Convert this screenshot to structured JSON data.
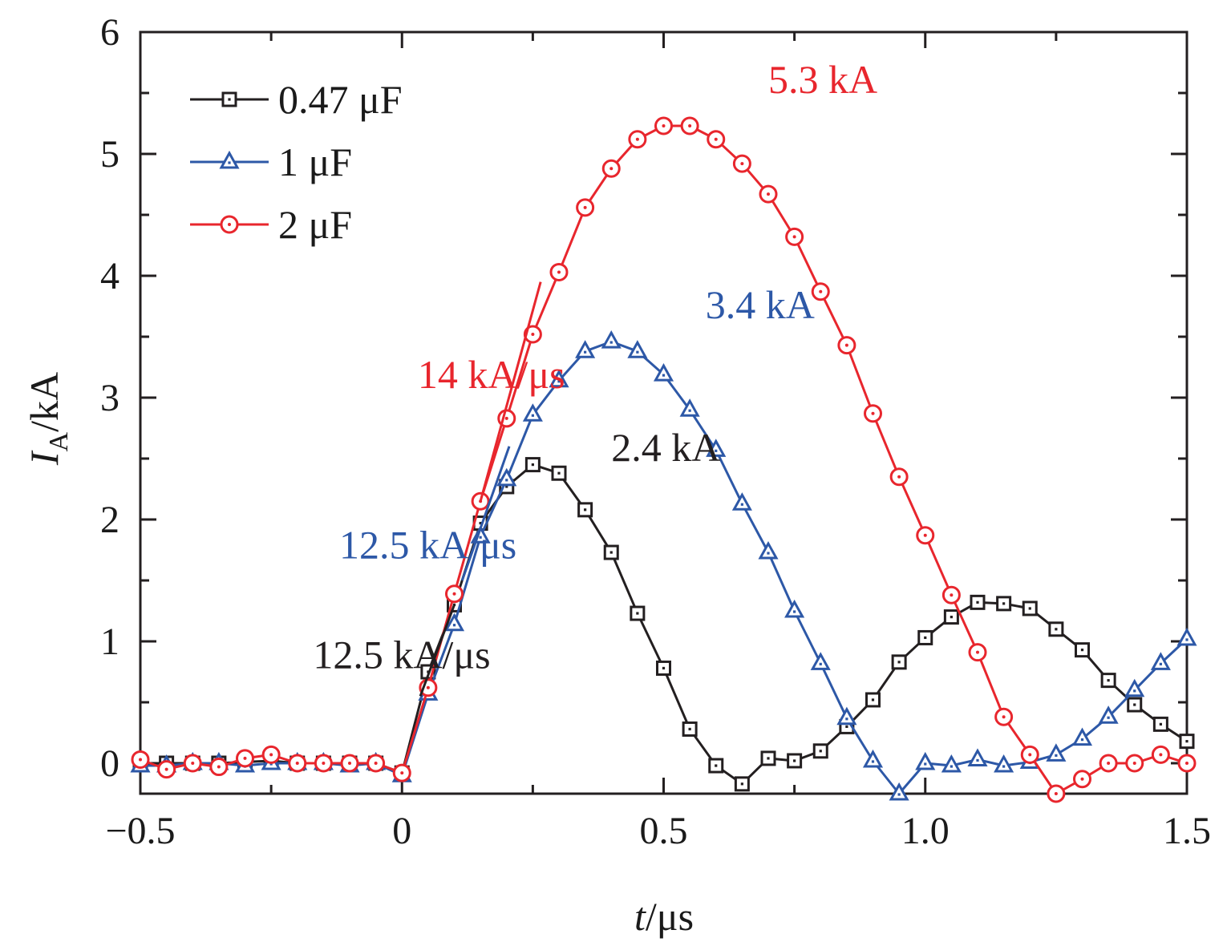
{
  "chart_data": {
    "type": "line",
    "xlabel_italic": "t",
    "xlabel_unit": "/μs",
    "ylabel_italic": "I",
    "ylabel_sub": "A",
    "ylabel_unit": "/kA",
    "xlim": [
      -0.5,
      1.5
    ],
    "ylim": [
      -0.25,
      6
    ],
    "x_ticks": [
      -0.5,
      0,
      0.5,
      1.0,
      1.5
    ],
    "x_tick_labels": [
      "−0.5",
      "0",
      "0.5",
      "1.0",
      "1.5"
    ],
    "y_ticks": [
      0,
      1,
      2,
      3,
      4,
      5,
      6
    ],
    "y_tick_labels": [
      "0",
      "1",
      "2",
      "3",
      "4",
      "5",
      "6"
    ],
    "grid": false,
    "legend_placement": "top-left",
    "series": [
      {
        "name": "0.47 μF",
        "color": "#231f20",
        "marker": "square",
        "x": [
          -0.5,
          -0.45,
          -0.4,
          -0.35,
          -0.3,
          -0.25,
          -0.2,
          -0.15,
          -0.1,
          -0.05,
          0,
          0.05,
          0.1,
          0.15,
          0.2,
          0.25,
          0.3,
          0.35,
          0.4,
          0.45,
          0.5,
          0.55,
          0.6,
          0.65,
          0.7,
          0.75,
          0.8,
          0.85,
          0.9,
          0.95,
          1.0,
          1.05,
          1.1,
          1.15,
          1.2,
          1.25,
          1.3,
          1.35,
          1.4,
          1.45,
          1.5
        ],
        "y": [
          0.0,
          0.0,
          0.0,
          0.0,
          0.01,
          0.02,
          0.0,
          0.0,
          0.0,
          0.0,
          -0.08,
          0.75,
          1.3,
          1.97,
          2.27,
          2.45,
          2.38,
          2.08,
          1.73,
          1.23,
          0.78,
          0.28,
          -0.02,
          -0.17,
          0.04,
          0.02,
          0.1,
          0.3,
          0.52,
          0.83,
          1.03,
          1.2,
          1.32,
          1.31,
          1.27,
          1.1,
          0.93,
          0.68,
          0.48,
          0.32,
          0.18
        ]
      },
      {
        "name": "1 μF",
        "color": "#2d58a7",
        "marker": "triangle",
        "x": [
          -0.5,
          -0.45,
          -0.4,
          -0.35,
          -0.3,
          -0.25,
          -0.2,
          -0.15,
          -0.1,
          -0.05,
          0,
          0.05,
          0.1,
          0.15,
          0.2,
          0.25,
          0.3,
          0.35,
          0.4,
          0.45,
          0.5,
          0.55,
          0.6,
          0.65,
          0.7,
          0.75,
          0.8,
          0.85,
          0.9,
          0.95,
          1.0,
          1.05,
          1.1,
          1.15,
          1.2,
          1.25,
          1.3,
          1.35,
          1.4,
          1.45,
          1.5
        ],
        "y": [
          -0.02,
          -0.02,
          0.0,
          0.0,
          -0.02,
          0.0,
          0.0,
          0.0,
          -0.02,
          0.0,
          -0.1,
          0.57,
          1.14,
          1.86,
          2.33,
          2.86,
          3.14,
          3.38,
          3.46,
          3.38,
          3.19,
          2.9,
          2.57,
          2.13,
          1.73,
          1.25,
          0.82,
          0.37,
          0.02,
          -0.25,
          0.0,
          -0.02,
          0.03,
          -0.02,
          0.01,
          0.07,
          0.2,
          0.38,
          0.6,
          0.82,
          1.02
        ]
      },
      {
        "name": "2 μF",
        "color": "#e8262d",
        "marker": "circle",
        "x": [
          -0.5,
          -0.45,
          -0.4,
          -0.35,
          -0.3,
          -0.25,
          -0.2,
          -0.15,
          -0.1,
          -0.05,
          0,
          0.05,
          0.1,
          0.15,
          0.2,
          0.25,
          0.3,
          0.35,
          0.4,
          0.45,
          0.5,
          0.55,
          0.6,
          0.65,
          0.7,
          0.75,
          0.8,
          0.85,
          0.9,
          0.95,
          1.0,
          1.05,
          1.1,
          1.15,
          1.2,
          1.25,
          1.3,
          1.35,
          1.4,
          1.45,
          1.5
        ],
        "y": [
          0.03,
          -0.05,
          0.0,
          -0.03,
          0.04,
          0.07,
          0.0,
          0.0,
          0.0,
          0.0,
          -0.08,
          0.62,
          1.39,
          2.15,
          2.83,
          3.52,
          4.03,
          4.56,
          4.88,
          5.12,
          5.23,
          5.23,
          5.12,
          4.92,
          4.67,
          4.32,
          3.87,
          3.43,
          2.87,
          2.35,
          1.87,
          1.38,
          0.91,
          0.38,
          0.07,
          -0.25,
          -0.13,
          0.0,
          0.0,
          0.07,
          0.0
        ]
      }
    ],
    "slope_lines": [
      {
        "series": "2 μF",
        "x": [
          0.15,
          0.265
        ],
        "y": [
          2.15,
          3.95
        ]
      },
      {
        "series": "1 μF",
        "x": [
          0.115,
          0.205
        ],
        "y": [
          1.5,
          2.6
        ]
      },
      {
        "series": "0.47 μF",
        "x": [
          0.035,
          0.1
        ],
        "y": [
          0.55,
          1.3
        ]
      }
    ],
    "annotations": [
      {
        "text": "5.3 kA",
        "color": "#e8262d",
        "x": 0.7,
        "y": 5.5
      },
      {
        "text": "3.4 kA",
        "color": "#2d58a7",
        "x": 0.58,
        "y": 3.65
      },
      {
        "text": "2.4 kA",
        "color": "#231f20",
        "x": 0.4,
        "y": 2.48
      },
      {
        "text": "14 kA/μs",
        "color": "#e8262d",
        "x": 0.03,
        "y": 3.08
      },
      {
        "text": "12.5 kA/μs",
        "color": "#2d58a7",
        "x": -0.12,
        "y": 1.68
      },
      {
        "text": "12.5 kA/μs",
        "color": "#231f20",
        "x": -0.17,
        "y": 0.78
      }
    ]
  }
}
